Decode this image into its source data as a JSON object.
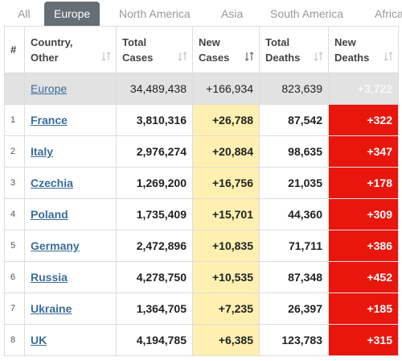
{
  "tabs": {
    "items": [
      "All",
      "Europe",
      "North America",
      "Asia",
      "South America",
      "Africa"
    ],
    "active": 1
  },
  "table": {
    "headers": [
      "#",
      "Country, Other",
      "Total Cases",
      "New Cases",
      "Total Deaths",
      "New Deaths"
    ],
    "total": {
      "country": "Europe",
      "total_cases": "34,489,438",
      "new_cases": "+166,934",
      "total_deaths": "823,639",
      "new_deaths": "+3,722"
    },
    "rows": [
      {
        "rank": "1",
        "country": "France",
        "total_cases": "3,810,316",
        "new_cases": "+26,788",
        "total_deaths": "87,542",
        "new_deaths": "+322"
      },
      {
        "rank": "2",
        "country": "Italy",
        "total_cases": "2,976,274",
        "new_cases": "+20,884",
        "total_deaths": "98,635",
        "new_deaths": "+347"
      },
      {
        "rank": "3",
        "country": "Czechia",
        "total_cases": "1,269,200",
        "new_cases": "+16,756",
        "total_deaths": "21,035",
        "new_deaths": "+178"
      },
      {
        "rank": "4",
        "country": "Poland",
        "total_cases": "1,735,409",
        "new_cases": "+15,701",
        "total_deaths": "44,360",
        "new_deaths": "+309"
      },
      {
        "rank": "5",
        "country": "Germany",
        "total_cases": "2,472,896",
        "new_cases": "+10,835",
        "total_deaths": "71,711",
        "new_deaths": "+386"
      },
      {
        "rank": "6",
        "country": "Russia",
        "total_cases": "4,278,750",
        "new_cases": "+10,535",
        "total_deaths": "87,348",
        "new_deaths": "+452"
      },
      {
        "rank": "7",
        "country": "Ukraine",
        "total_cases": "1,364,705",
        "new_cases": "+7,235",
        "total_deaths": "26,397",
        "new_deaths": "+185"
      },
      {
        "rank": "8",
        "country": "UK",
        "total_cases": "4,194,785",
        "new_cases": "+6,385",
        "total_deaths": "123,783",
        "new_deaths": "+315"
      }
    ]
  }
}
